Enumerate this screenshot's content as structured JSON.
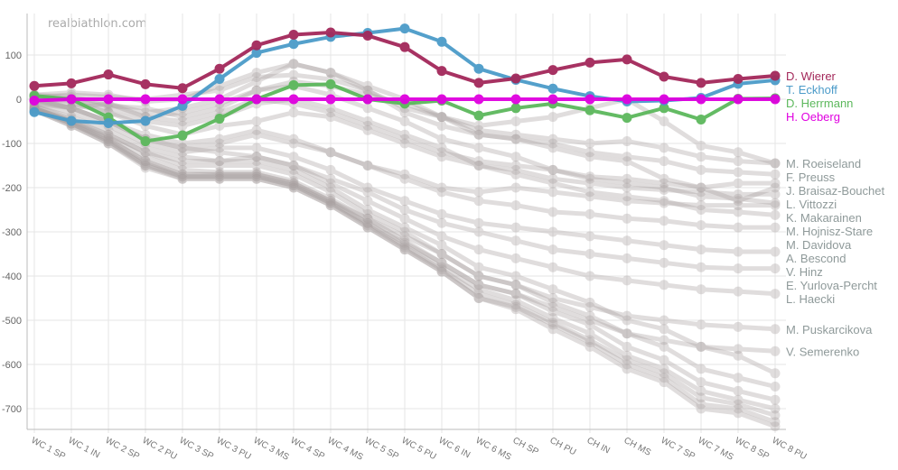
{
  "watermark": "realbiathlon.com",
  "chart_data": {
    "type": "line",
    "title": "",
    "xlabel": "",
    "ylabel": "",
    "ylim": [
      -740,
      180
    ],
    "yticks": [
      100,
      0,
      -100,
      -200,
      -300,
      -400,
      -500,
      -600,
      -700
    ],
    "grid": true,
    "legend": "labels at line ends (right)",
    "categories": [
      "WC 1 SP",
      "WC 1 IN",
      "WC 2 SP",
      "WC 2 PU",
      "WC 3 SP",
      "WC 3 PU",
      "WC 3 MS",
      "WC 4 SP",
      "WC 4 MS",
      "WC 5 SP",
      "WC 5 PU",
      "WC 6 IN",
      "WC 6 MS",
      "CH SP",
      "CH PU",
      "CH IN",
      "CH MS",
      "WC 7 SP",
      "WC 7 MS",
      "WC 8 SP",
      "WC 8 PU"
    ],
    "highlighted_series": [
      {
        "name": "D. Wierer",
        "color": "#a3285a",
        "values": [
          30,
          36,
          56,
          34,
          25,
          69,
          122,
          146,
          151,
          144,
          118,
          64,
          37,
          47,
          66,
          83,
          90,
          51,
          37,
          46,
          53
        ]
      },
      {
        "name": "T. Eckhoff",
        "color": "#4b9bc9",
        "values": [
          -29,
          -49,
          -54,
          -49,
          -15,
          46,
          105,
          125,
          141,
          150,
          160,
          130,
          69,
          44,
          24,
          7,
          -5,
          -3,
          3,
          35,
          43
        ]
      },
      {
        "name": "D. Herrmann",
        "color": "#5cb85c",
        "values": [
          8,
          0,
          -41,
          -95,
          -82,
          -44,
          0,
          32,
          34,
          0,
          -10,
          -3,
          -37,
          -20,
          -10,
          -25,
          -42,
          -20,
          -46,
          1,
          2
        ]
      },
      {
        "name": "H. Oeberg",
        "color": "#e000e0",
        "values": [
          -3,
          0,
          0,
          0,
          0,
          0,
          0,
          0,
          0,
          0,
          0,
          0,
          0,
          0,
          0,
          0,
          0,
          0,
          0,
          0,
          0
        ]
      }
    ],
    "other_series_color": "#a8a0a0",
    "other_series": [
      {
        "name": "M. Roeiseland",
        "values": [
          5,
          0,
          -20,
          -40,
          -30,
          -10,
          20,
          40,
          30,
          10,
          -10,
          -40,
          -70,
          -80,
          -90,
          -100,
          -95,
          -110,
          -130,
          -140,
          -145
        ]
      },
      {
        "name": "F. Preuss",
        "values": [
          10,
          5,
          -10,
          -30,
          -20,
          0,
          40,
          80,
          60,
          30,
          0,
          -40,
          -80,
          -90,
          -100,
          -120,
          -130,
          -140,
          -160,
          -165,
          -170
        ]
      },
      {
        "name": "J. Braisaz-Bouchet",
        "values": [
          -10,
          -20,
          -10,
          -40,
          -50,
          -30,
          0,
          -10,
          -30,
          -60,
          -90,
          -120,
          -140,
          -150,
          -160,
          -175,
          -180,
          -190,
          -200,
          -190,
          -190
        ]
      },
      {
        "name": "L. Vittozzi",
        "values": [
          0,
          -5,
          -30,
          -60,
          -80,
          -60,
          -50,
          -30,
          -40,
          -70,
          -100,
          -130,
          -150,
          -160,
          -180,
          -190,
          -200,
          -205,
          -210,
          -215,
          -215
        ]
      },
      {
        "name": "K. Makarainen",
        "values": [
          5,
          0,
          -15,
          -20,
          -40,
          -20,
          20,
          30,
          10,
          -20,
          -50,
          -90,
          -110,
          -130,
          -160,
          -180,
          -190,
          -200,
          -220,
          -225,
          -235
        ]
      },
      {
        "name": "M. Hojnisz-Stare",
        "values": [
          -5,
          -20,
          -50,
          -90,
          -110,
          -100,
          -80,
          -100,
          -120,
          -150,
          -170,
          -200,
          -210,
          -200,
          -210,
          -220,
          -230,
          -235,
          -240,
          -240,
          -240
        ]
      },
      {
        "name": "M. Davidova",
        "values": [
          0,
          -10,
          -30,
          -50,
          -60,
          -40,
          -10,
          0,
          -20,
          -50,
          -80,
          -110,
          -150,
          -170,
          -190,
          -210,
          -220,
          -230,
          -250,
          -255,
          -262
        ]
      },
      {
        "name": "A. Bescond",
        "values": [
          0,
          -20,
          -50,
          -80,
          -100,
          -90,
          -70,
          -90,
          -120,
          -150,
          -180,
          -210,
          -230,
          -240,
          -255,
          -260,
          -270,
          -275,
          -285,
          -290,
          -290
        ]
      },
      {
        "name": "V. Hinz",
        "values": [
          -10,
          -30,
          -60,
          -100,
          -120,
          -110,
          -110,
          -130,
          -160,
          -200,
          -230,
          -260,
          -280,
          -290,
          -300,
          -310,
          -320,
          -330,
          -340,
          -345,
          -345
        ]
      },
      {
        "name": "E. Yurlova-Percht",
        "values": [
          0,
          -20,
          -50,
          -90,
          -110,
          -120,
          -130,
          -150,
          -180,
          -210,
          -250,
          -280,
          -300,
          -320,
          -340,
          -350,
          -360,
          -370,
          -380,
          -383,
          -383
        ]
      },
      {
        "name": "L. Haecki",
        "values": [
          -15,
          -40,
          -70,
          -110,
          -130,
          -140,
          -130,
          -150,
          -190,
          -230,
          -270,
          -310,
          -340,
          -360,
          -380,
          -400,
          -410,
          -420,
          -430,
          -435,
          -440
        ]
      },
      {
        "name": "M. Puskarcikova",
        "values": [
          -20,
          -50,
          -90,
          -140,
          -170,
          -170,
          -170,
          -190,
          -230,
          -270,
          -310,
          -350,
          -400,
          -420,
          -450,
          -470,
          -490,
          -500,
          -510,
          -515,
          -520
        ]
      },
      {
        "name": "V. Semerenko",
        "values": [
          -25,
          -55,
          -95,
          -150,
          -175,
          -175,
          -175,
          -195,
          -235,
          -280,
          -325,
          -370,
          -420,
          -440,
          -470,
          -500,
          -530,
          -545,
          -560,
          -565,
          -570
        ]
      },
      {
        "values": [
          10,
          15,
          10,
          -5,
          0,
          30,
          60,
          80,
          60,
          20,
          -20,
          -40,
          -60,
          -50,
          -40,
          -20,
          0,
          -50,
          -105,
          -120,
          -145
        ]
      },
      {
        "values": [
          5,
          10,
          5,
          0,
          10,
          20,
          50,
          55,
          45,
          20,
          -30,
          -60,
          -80,
          -90,
          -110,
          -130,
          -140,
          -180,
          -200,
          -230,
          -200
        ]
      },
      {
        "values": [
          -20,
          -50,
          -80,
          -120,
          -140,
          -140,
          -140,
          -160,
          -200,
          -250,
          -290,
          -330,
          -380,
          -400,
          -430,
          -460,
          -500,
          -520,
          -560,
          -580,
          -620
        ]
      },
      {
        "values": [
          -15,
          -45,
          -80,
          -120,
          -150,
          -150,
          -150,
          -170,
          -210,
          -260,
          -300,
          -350,
          -400,
          -420,
          -460,
          -490,
          -530,
          -560,
          -610,
          -630,
          -650
        ]
      },
      {
        "values": [
          -20,
          -50,
          -85,
          -130,
          -160,
          -165,
          -165,
          -185,
          -225,
          -270,
          -320,
          -370,
          -420,
          -440,
          -480,
          -510,
          -560,
          -590,
          -640,
          -660,
          -680
        ]
      },
      {
        "values": [
          -20,
          -55,
          -90,
          -140,
          -170,
          -170,
          -170,
          -190,
          -230,
          -280,
          -330,
          -380,
          -430,
          -455,
          -495,
          -530,
          -580,
          -610,
          -660,
          -680,
          -700
        ]
      },
      {
        "values": [
          -22,
          -55,
          -95,
          -145,
          -175,
          -175,
          -175,
          -195,
          -235,
          -285,
          -335,
          -385,
          -440,
          -465,
          -505,
          -545,
          -590,
          -620,
          -675,
          -690,
          -715
        ]
      },
      {
        "values": [
          -25,
          -60,
          -100,
          -150,
          -180,
          -180,
          -180,
          -200,
          -240,
          -290,
          -340,
          -390,
          -450,
          -470,
          -510,
          -550,
          -600,
          -630,
          -690,
          -700,
          -730
        ]
      },
      {
        "values": [
          -25,
          -60,
          -100,
          -155,
          -180,
          -180,
          -180,
          -200,
          -240,
          -290,
          -340,
          -390,
          -450,
          -475,
          -520,
          -560,
          -610,
          -640,
          -700,
          -710,
          -740
        ]
      }
    ]
  }
}
